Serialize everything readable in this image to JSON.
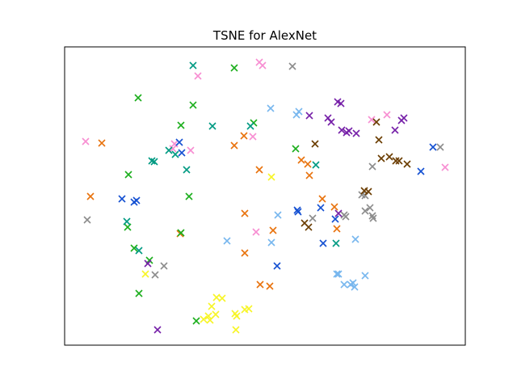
{
  "chart_data": {
    "type": "scatter",
    "title": "TSNE for AlexNet",
    "marker": "x",
    "xlim": [
      0,
      496
    ],
    "ylim": [
      0,
      369
    ],
    "axis_ticks": "none",
    "grid": false,
    "series": [
      {
        "color": "#e8720c",
        "points": [
          [
            46,
            119
          ],
          [
            32,
            185
          ],
          [
            143,
            231
          ],
          [
            258,
            227
          ],
          [
            254,
            296
          ],
          [
            223,
            255
          ],
          [
            242,
            294
          ],
          [
            319,
            188
          ],
          [
            303,
            159
          ],
          [
            222,
            110
          ],
          [
            241,
            152
          ],
          [
            223,
            206
          ],
          [
            210,
            122
          ],
          [
            301,
            145
          ],
          [
            293,
            140
          ],
          [
            334,
            198
          ],
          [
            337,
            225
          ]
        ]
      },
      {
        "color": "#1cae1d",
        "points": [
          [
            92,
            305
          ],
          [
            105,
            264
          ],
          [
            86,
            249
          ],
          [
            79,
            158
          ],
          [
            154,
            185
          ],
          [
            159,
            72
          ],
          [
            91,
            63
          ],
          [
            144,
            97
          ],
          [
            210,
            26
          ],
          [
            234,
            94
          ],
          [
            286,
            126
          ],
          [
            163,
            339
          ],
          [
            144,
            230
          ],
          [
            78,
            223
          ]
        ]
      },
      {
        "color": "#f78ed2",
        "points": [
          [
            26,
            117
          ],
          [
            136,
            120
          ],
          [
            134,
            126
          ],
          [
            156,
            128
          ],
          [
            165,
            36
          ],
          [
            241,
            19
          ],
          [
            245,
            23
          ],
          [
            233,
            111
          ],
          [
            380,
            90
          ],
          [
            399,
            84
          ],
          [
            471,
            149
          ],
          [
            237,
            229
          ]
        ]
      },
      {
        "color": "#009a82",
        "points": [
          [
            159,
            23
          ],
          [
            183,
            98
          ],
          [
            108,
            141
          ],
          [
            111,
            142
          ],
          [
            129,
            128
          ],
          [
            137,
            133
          ],
          [
            151,
            152
          ],
          [
            77,
            216
          ],
          [
            92,
            252
          ],
          [
            311,
            146
          ],
          [
            336,
            243
          ],
          [
            230,
            98
          ]
        ]
      },
      {
        "color": "#8c8c8c",
        "points": [
          [
            282,
            24
          ],
          [
            465,
            124
          ],
          [
            381,
            148
          ],
          [
            28,
            214
          ],
          [
            112,
            282
          ],
          [
            123,
            271
          ],
          [
            368,
            183
          ],
          [
            378,
            199
          ],
          [
            372,
            203
          ],
          [
            381,
            209
          ],
          [
            382,
            212
          ],
          [
            346,
            208
          ],
          [
            348,
            210
          ],
          [
            372,
            184
          ],
          [
            307,
            212
          ]
        ]
      },
      {
        "color": "#1450d2",
        "points": [
          [
            71,
            188
          ],
          [
            89,
            190
          ],
          [
            86,
            192
          ],
          [
            142,
            118
          ],
          [
            145,
            131
          ],
          [
            263,
            271
          ],
          [
            288,
            202
          ],
          [
            317,
            199
          ],
          [
            320,
            243
          ],
          [
            335,
            213
          ],
          [
            289,
            204
          ],
          [
            441,
            154
          ],
          [
            456,
            124
          ]
        ]
      },
      {
        "color": "#7620a8",
        "points": [
          [
            338,
            68
          ],
          [
            342,
            70
          ],
          [
            303,
            85
          ],
          [
            326,
            88
          ],
          [
            330,
            93
          ],
          [
            352,
            104
          ],
          [
            343,
            103
          ],
          [
            349,
            106
          ],
          [
            361,
            107
          ],
          [
            409,
            103
          ],
          [
            417,
            91
          ],
          [
            420,
            88
          ],
          [
            103,
            268
          ],
          [
            115,
            350
          ],
          [
            339,
            206
          ]
        ]
      },
      {
        "color": "#6a3c00",
        "points": [
          [
            386,
            93
          ],
          [
            389,
            115
          ],
          [
            392,
            138
          ],
          [
            402,
            136
          ],
          [
            410,
            141
          ],
          [
            414,
            141
          ],
          [
            424,
            145
          ],
          [
            371,
            178
          ],
          [
            376,
            179
          ],
          [
            310,
            120
          ],
          [
            297,
            218
          ],
          [
            302,
            223
          ]
        ]
      },
      {
        "color": "#78b7ee",
        "points": [
          [
            255,
            76
          ],
          [
            287,
            84
          ],
          [
            290,
            80
          ],
          [
            264,
            208
          ],
          [
            201,
            240
          ],
          [
            256,
            242
          ],
          [
            337,
            281
          ],
          [
            339,
            281
          ],
          [
            346,
            294
          ],
          [
            354,
            294
          ],
          [
            357,
            292
          ],
          [
            359,
            297
          ],
          [
            372,
            283
          ],
          [
            360,
            238
          ]
        ]
      },
      {
        "color": "#f7f526",
        "points": [
          [
            256,
            161
          ],
          [
            100,
            281
          ],
          [
            188,
            310
          ],
          [
            195,
            311
          ],
          [
            182,
            321
          ],
          [
            178,
            333
          ],
          [
            172,
            337
          ],
          [
            180,
            338
          ],
          [
            187,
            331
          ],
          [
            211,
            330
          ],
          [
            223,
            325
          ],
          [
            213,
            333
          ],
          [
            228,
            324
          ],
          [
            212,
            350
          ]
        ]
      }
    ]
  }
}
